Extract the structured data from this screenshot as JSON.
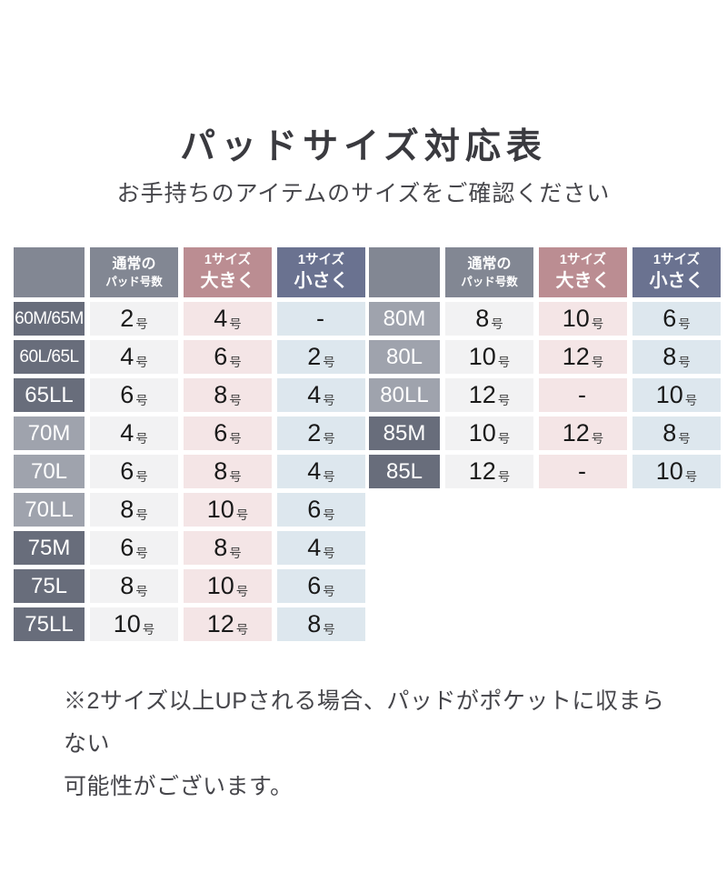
{
  "page": {
    "title": "パッドサイズ対応表",
    "subtitle": "お手持ちのアイテムのサイズをご確認ください"
  },
  "header_labels": {
    "normal": {
      "line1": "通常の",
      "line2": "パッド号数"
    },
    "size_up": {
      "line1": "1サイズ",
      "line2": "大きく"
    },
    "size_down": {
      "line1": "1サイズ",
      "line2": "小さく"
    }
  },
  "tables": [
    {
      "name": "sizes-60-75",
      "rows": [
        {
          "label": "60M/65M",
          "variant": "dark long",
          "normal": {
            "v": "2",
            "u": "号"
          },
          "up": {
            "v": "4",
            "u": "号"
          },
          "down": {
            "v": "-",
            "u": ""
          }
        },
        {
          "label": "60L/65L",
          "variant": "dark long",
          "normal": {
            "v": "4",
            "u": "号"
          },
          "up": {
            "v": "6",
            "u": "号"
          },
          "down": {
            "v": "2",
            "u": "号"
          }
        },
        {
          "label": "65LL",
          "variant": "dark",
          "normal": {
            "v": "6",
            "u": "号"
          },
          "up": {
            "v": "8",
            "u": "号"
          },
          "down": {
            "v": "4",
            "u": "号"
          }
        },
        {
          "label": "70M",
          "variant": "light",
          "normal": {
            "v": "4",
            "u": "号"
          },
          "up": {
            "v": "6",
            "u": "号"
          },
          "down": {
            "v": "2",
            "u": "号"
          }
        },
        {
          "label": "70L",
          "variant": "light",
          "normal": {
            "v": "6",
            "u": "号"
          },
          "up": {
            "v": "8",
            "u": "号"
          },
          "down": {
            "v": "4",
            "u": "号"
          }
        },
        {
          "label": "70LL",
          "variant": "light",
          "normal": {
            "v": "8",
            "u": "号"
          },
          "up": {
            "v": "10",
            "u": "号"
          },
          "down": {
            "v": "6",
            "u": "号"
          }
        },
        {
          "label": "75M",
          "variant": "dark",
          "normal": {
            "v": "6",
            "u": "号"
          },
          "up": {
            "v": "8",
            "u": "号"
          },
          "down": {
            "v": "4",
            "u": "号"
          }
        },
        {
          "label": "75L",
          "variant": "dark",
          "normal": {
            "v": "8",
            "u": "号"
          },
          "up": {
            "v": "10",
            "u": "号"
          },
          "down": {
            "v": "6",
            "u": "号"
          }
        },
        {
          "label": "75LL",
          "variant": "dark",
          "normal": {
            "v": "10",
            "u": "号"
          },
          "up": {
            "v": "12",
            "u": "号"
          },
          "down": {
            "v": "8",
            "u": "号"
          }
        }
      ]
    },
    {
      "name": "sizes-80-85",
      "rows": [
        {
          "label": "80M",
          "variant": "light",
          "normal": {
            "v": "8",
            "u": "号"
          },
          "up": {
            "v": "10",
            "u": "号"
          },
          "down": {
            "v": "6",
            "u": "号"
          }
        },
        {
          "label": "80L",
          "variant": "light",
          "normal": {
            "v": "10",
            "u": "号"
          },
          "up": {
            "v": "12",
            "u": "号"
          },
          "down": {
            "v": "8",
            "u": "号"
          }
        },
        {
          "label": "80LL",
          "variant": "light",
          "normal": {
            "v": "12",
            "u": "号"
          },
          "up": {
            "v": "-",
            "u": ""
          },
          "down": {
            "v": "10",
            "u": "号"
          }
        },
        {
          "label": "85M",
          "variant": "dark",
          "normal": {
            "v": "10",
            "u": "号"
          },
          "up": {
            "v": "12",
            "u": "号"
          },
          "down": {
            "v": "8",
            "u": "号"
          }
        },
        {
          "label": "85L",
          "variant": "dark",
          "normal": {
            "v": "12",
            "u": "号"
          },
          "up": {
            "v": "-",
            "u": ""
          },
          "down": {
            "v": "10",
            "u": "号"
          }
        }
      ]
    }
  ],
  "note": {
    "line1": "※2サイズ以上UPされる場合、パッドがポケットに収まらない",
    "line2": "可能性がございます。"
  },
  "colors": {
    "header_gray": "#828793",
    "header_pink": "#bb8d92",
    "header_blue": "#6a7290",
    "label_dark": "#686d7b",
    "label_light": "#9fa3ad",
    "cell_gray": "#f2f2f3",
    "cell_pink": "#f4e5e6",
    "cell_blue": "#dde7ee"
  }
}
